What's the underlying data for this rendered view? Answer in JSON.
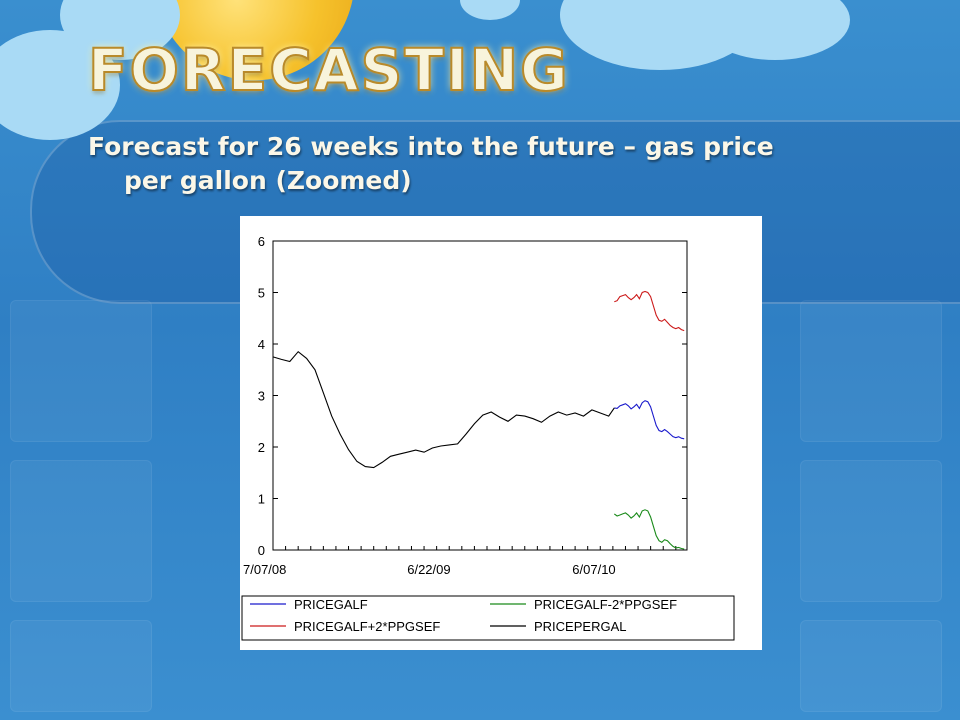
{
  "slide": {
    "title": "FORECASTING",
    "subtitle_line1": "Forecast for 26 weeks into the future – gas price",
    "subtitle_line2": "per gallon (Zoomed)"
  },
  "colors": {
    "background": "#2f7fc4",
    "title_text": "#f8f4dc",
    "series_forecast": "#1a1acc",
    "series_upper": "#cc1a1a",
    "series_lower": "#1a8a1a",
    "series_actual": "#000000"
  },
  "chart_data": {
    "type": "line",
    "ylim": [
      0,
      6
    ],
    "yticks": [
      "0",
      "1",
      "2",
      "3",
      "4",
      "5",
      "6"
    ],
    "xticks": [
      "7/07/08",
      "6/22/09",
      "6/07/10"
    ],
    "legend_position": "bottom",
    "grid": false,
    "series": [
      {
        "name": "PRICEGALF",
        "x": [
          0,
          1,
          2,
          3,
          4,
          5,
          6,
          7,
          8,
          9,
          10,
          11,
          12,
          13,
          14,
          15,
          16,
          17,
          18,
          19,
          20,
          21,
          22,
          23,
          24,
          25
        ],
        "values": [
          2.76,
          2.75,
          2.8,
          2.82,
          2.84,
          2.8,
          2.74,
          2.78,
          2.83,
          2.75,
          2.86,
          2.9,
          2.88,
          2.78,
          2.6,
          2.42,
          2.32,
          2.3,
          2.34,
          2.3,
          2.25,
          2.2,
          2.18,
          2.2,
          2.17,
          2.16
        ]
      },
      {
        "name": "PRICEGALF-2*PPGSEF",
        "x": [
          0,
          1,
          2,
          3,
          4,
          5,
          6,
          7,
          8,
          9,
          10,
          11,
          12,
          13,
          14,
          15,
          16,
          17,
          18,
          19,
          20,
          21,
          22,
          23,
          24,
          25
        ],
        "values": [
          0.7,
          0.66,
          0.68,
          0.7,
          0.72,
          0.68,
          0.62,
          0.66,
          0.72,
          0.64,
          0.76,
          0.78,
          0.76,
          0.64,
          0.46,
          0.28,
          0.18,
          0.15,
          0.2,
          0.18,
          0.12,
          0.07,
          0.04,
          0.05,
          0.03,
          0.02
        ]
      },
      {
        "name": "PRICEGALF+2*PPGSEF",
        "x": [
          0,
          1,
          2,
          3,
          4,
          5,
          6,
          7,
          8,
          9,
          10,
          11,
          12,
          13,
          14,
          15,
          16,
          17,
          18,
          19,
          20,
          21,
          22,
          23,
          24,
          25
        ],
        "values": [
          4.82,
          4.84,
          4.92,
          4.94,
          4.96,
          4.9,
          4.86,
          4.9,
          4.96,
          4.88,
          5.0,
          5.02,
          5.0,
          4.92,
          4.74,
          4.56,
          4.46,
          4.44,
          4.48,
          4.42,
          4.36,
          4.32,
          4.3,
          4.32,
          4.28,
          4.26
        ]
      },
      {
        "name": "PRICEPERGAL",
        "x": [
          -122,
          -119,
          -116,
          -113,
          -110,
          -107,
          -104,
          -101,
          -98,
          -95,
          -92,
          -89,
          -86,
          -83,
          -80,
          -77,
          -74,
          -71,
          -68,
          -65,
          -62,
          -59,
          -56,
          -53,
          -50,
          -47,
          -44,
          -41,
          -38,
          -35,
          -32,
          -29,
          -26,
          -23,
          -20,
          -17,
          -14,
          -11,
          -8,
          -5,
          -2,
          0
        ],
        "values": [
          3.75,
          3.7,
          3.66,
          3.85,
          3.72,
          3.5,
          3.05,
          2.6,
          2.25,
          1.95,
          1.72,
          1.62,
          1.6,
          1.7,
          1.82,
          1.86,
          1.9,
          1.94,
          1.9,
          1.98,
          2.02,
          2.04,
          2.06,
          2.25,
          2.45,
          2.62,
          2.68,
          2.58,
          2.5,
          2.62,
          2.6,
          2.55,
          2.48,
          2.6,
          2.68,
          2.62,
          2.66,
          2.6,
          2.72,
          2.66,
          2.6,
          2.76
        ]
      }
    ]
  }
}
